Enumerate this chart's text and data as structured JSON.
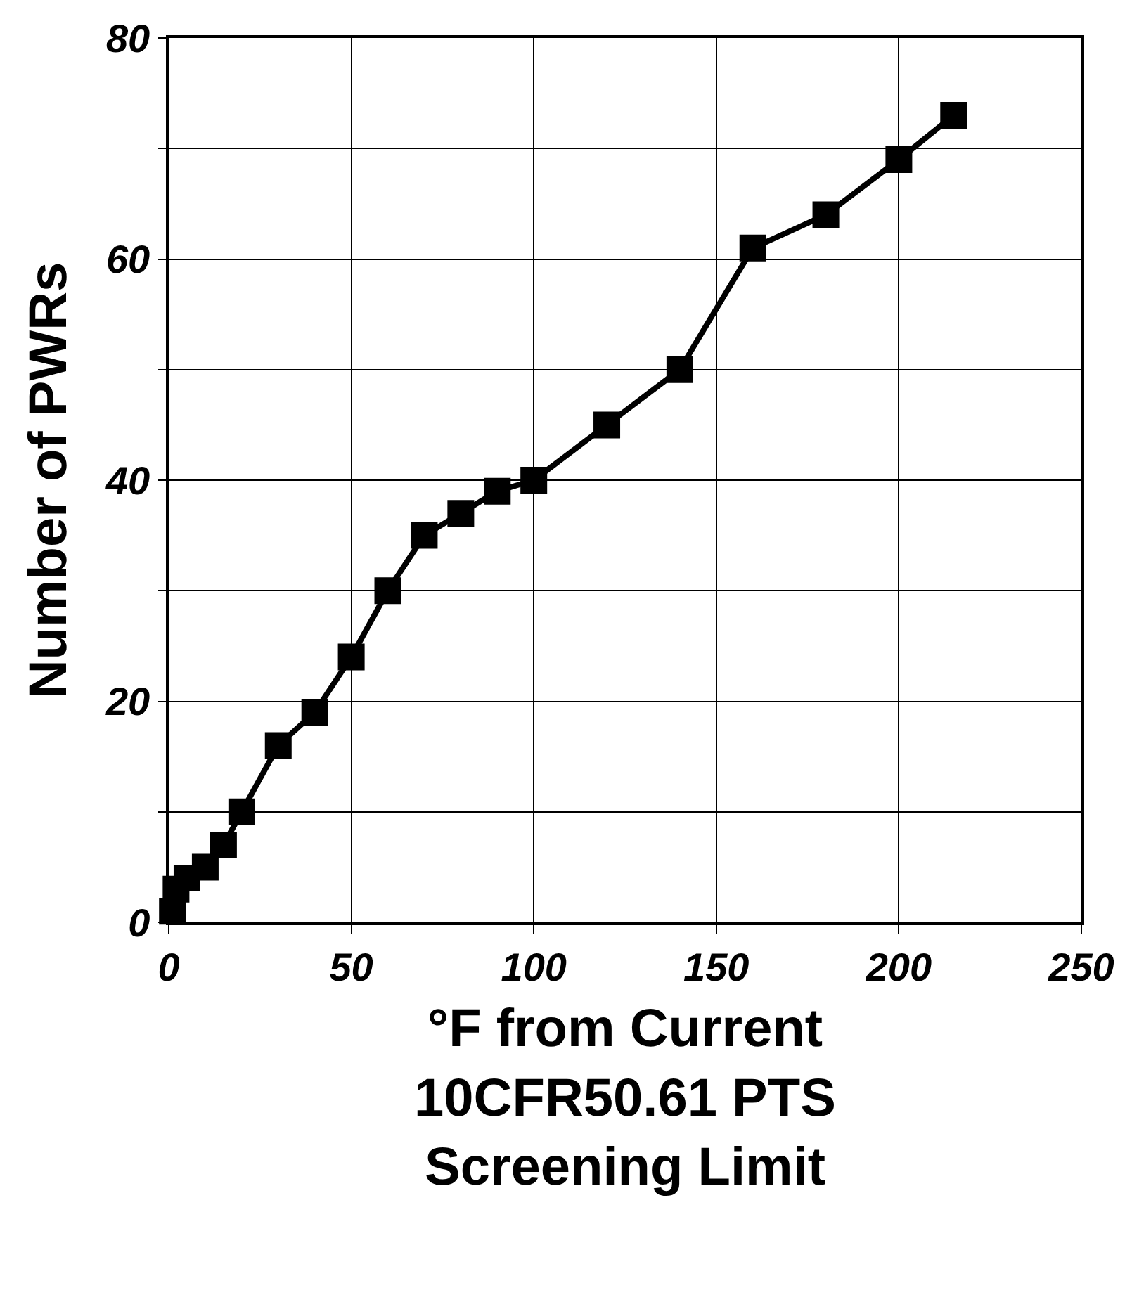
{
  "chart_data": {
    "type": "line",
    "xlabel": "°F from Current\n10CFR50.61 PTS\nScreening Limit",
    "ylabel": "Number of PWRs",
    "x": [
      1,
      2,
      5,
      10,
      15,
      20,
      30,
      40,
      50,
      60,
      70,
      80,
      90,
      100,
      120,
      140,
      160,
      180,
      200,
      215
    ],
    "series": [
      {
        "color": "#000000",
        "values": [
          1,
          3,
          4,
          5,
          7,
          10,
          16,
          19,
          24,
          30,
          35,
          37,
          39,
          40,
          45,
          50,
          61,
          64,
          69,
          73
        ]
      }
    ],
    "xlim": [
      0,
      250
    ],
    "xticks": [
      0,
      50,
      100,
      150,
      200,
      250
    ],
    "ylim": [
      0,
      80
    ],
    "yticks": [
      0,
      {
        "value": 10,
        "label": null
      },
      20,
      {
        "value": 30,
        "label": null
      },
      40,
      {
        "value": 50,
        "label": null
      },
      60,
      {
        "value": 70,
        "label": null
      },
      80
    ],
    "grid": true,
    "marker": "square",
    "line_style": "solid"
  }
}
